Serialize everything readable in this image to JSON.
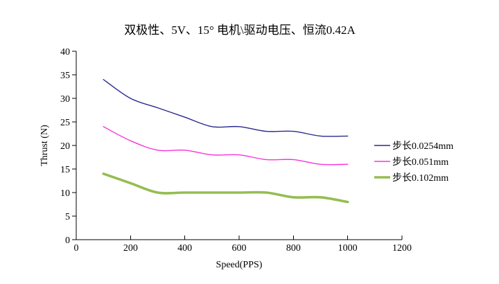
{
  "chart_data": {
    "type": "line",
    "title": "双极性、5V、15° 电机\\驱动电压、恒流0.42A",
    "xlabel": "Speed(PPS)",
    "ylabel": "Thrust (N)",
    "x": [
      100,
      200,
      300,
      400,
      500,
      600,
      700,
      800,
      900,
      1000
    ],
    "series": [
      {
        "name": "步长0.0254mm",
        "color": "#282890",
        "line_width": 1.4,
        "values": [
          34,
          30,
          28,
          26,
          24,
          24,
          23,
          23,
          22,
          22
        ]
      },
      {
        "name": "步长0.051mm",
        "color": "#F832DC",
        "line_width": 1.4,
        "values": [
          24,
          21,
          19,
          19,
          18,
          18,
          17,
          17,
          16,
          16
        ]
      },
      {
        "name": "步长0.102mm",
        "color": "#95BD51",
        "line_width": 3.6,
        "values": [
          14,
          12,
          10,
          10,
          10,
          10,
          10,
          9,
          9,
          8
        ]
      }
    ],
    "xlim": [
      0,
      1200
    ],
    "ylim": [
      0,
      40
    ],
    "xticks": [
      0,
      200,
      400,
      600,
      800,
      1000,
      1200
    ],
    "yticks": [
      0,
      5,
      10,
      15,
      20,
      25,
      30,
      35,
      40
    ],
    "grid": false,
    "smooth": true,
    "legend_position": "right",
    "background": "#FFFFFF",
    "axis_color": "#000000"
  }
}
